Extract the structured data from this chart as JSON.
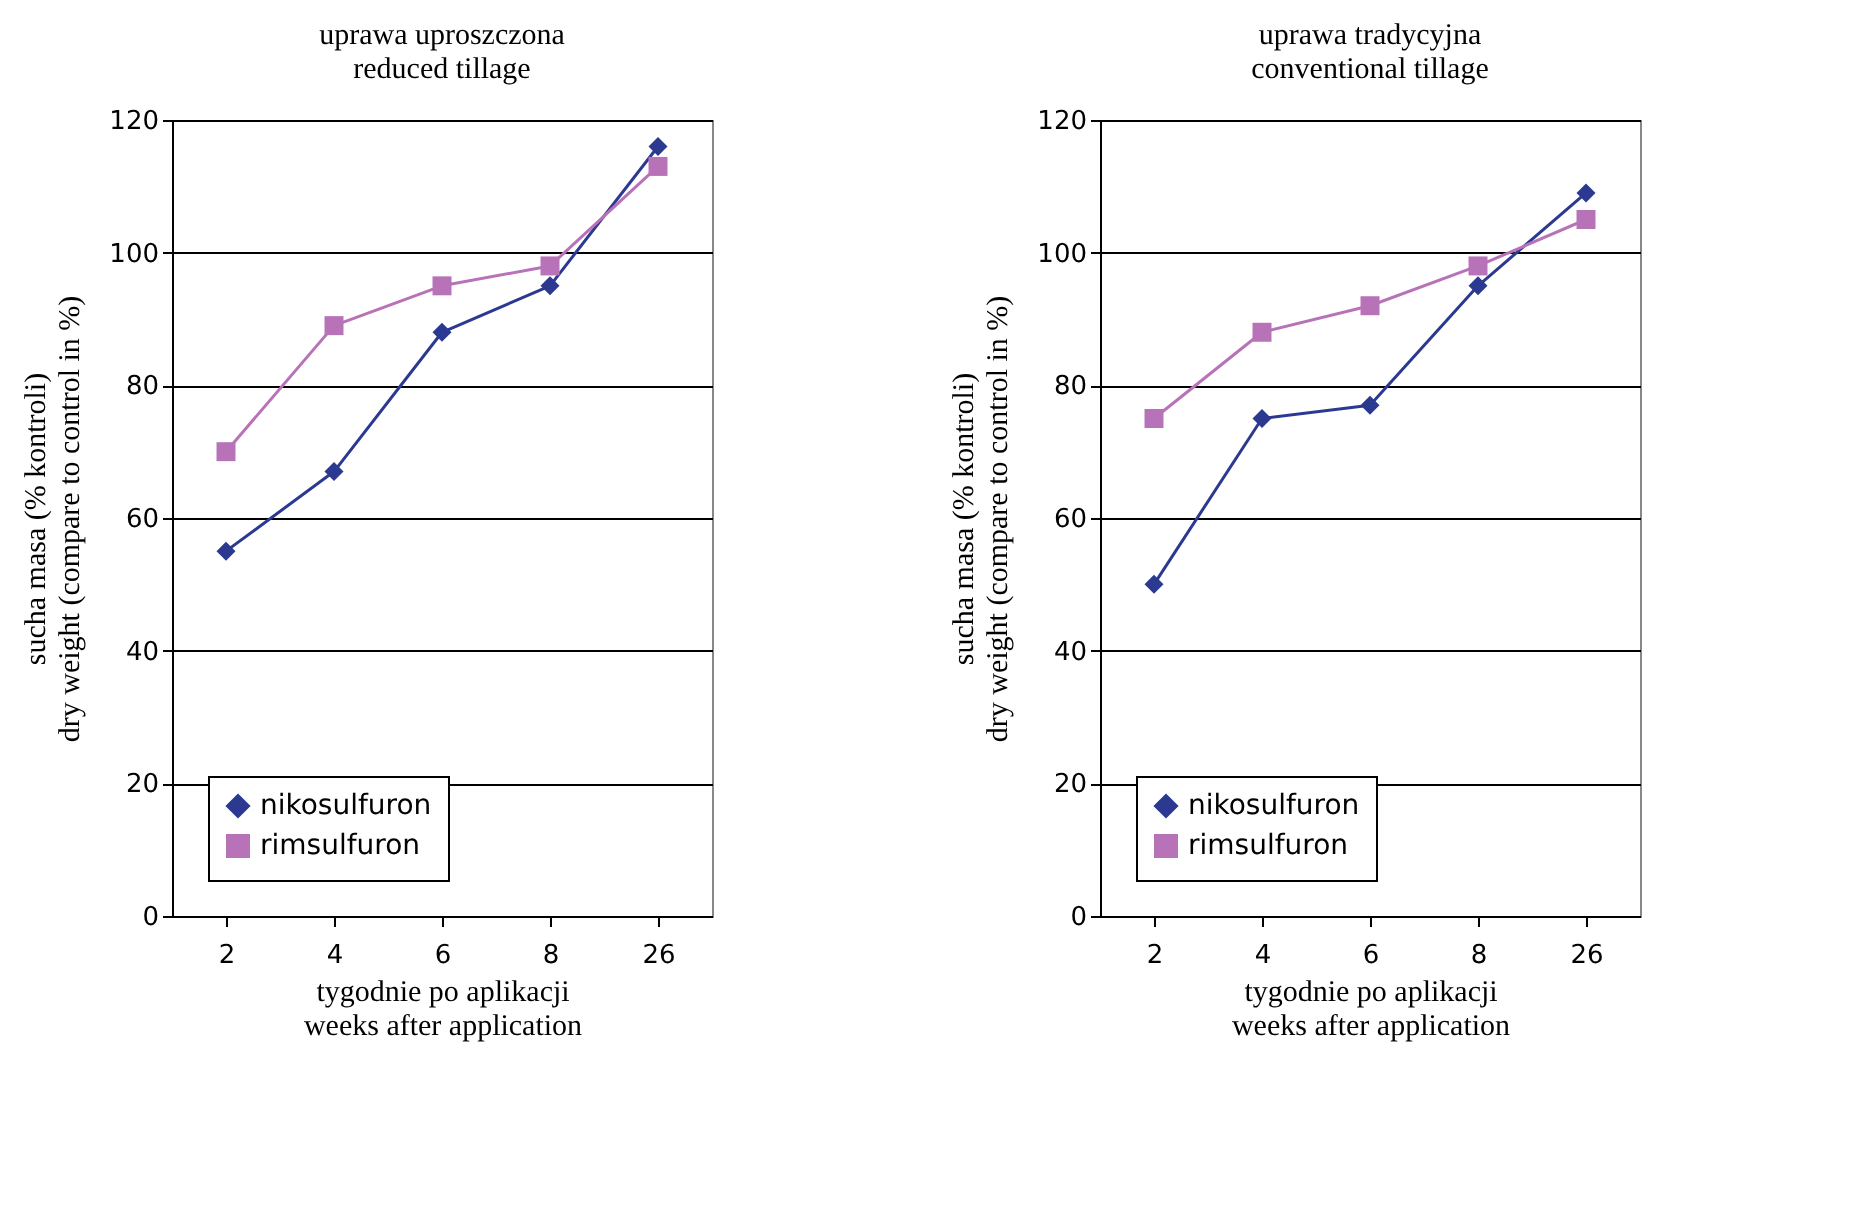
{
  "chart_data": [
    {
      "type": "line",
      "title": "uprawa uproszczona\nreduced tillage",
      "xlabel": "tygodnie po aplikacji\nweeks after application",
      "ylabel": "sucha masa (% kontroli)\ndry weight (compare to control in %)",
      "categories": [
        "2",
        "4",
        "6",
        "8",
        "26"
      ],
      "series": [
        {
          "name": "nikosulfuron",
          "color": "#2b3990",
          "marker": "diamond",
          "values": [
            55,
            67,
            88,
            95,
            116
          ]
        },
        {
          "name": "rimsulfuron",
          "color": "#b872b8",
          "marker": "square",
          "values": [
            70,
            89,
            95,
            98,
            113
          ]
        }
      ],
      "ylim": [
        0,
        120
      ],
      "yticks": [
        0,
        20,
        40,
        60,
        80,
        100,
        120
      ],
      "grid": "y",
      "legend": "bottom"
    },
    {
      "type": "line",
      "title": "uprawa tradycyjna\nconventional tillage",
      "xlabel": "tygodnie po aplikacji\nweeks after application",
      "ylabel": "sucha masa (% kontroli)\ndry weight (compare to control in %)",
      "categories": [
        "2",
        "4",
        "6",
        "8",
        "26"
      ],
      "series": [
        {
          "name": "nikosulfuron",
          "color": "#2b3990",
          "marker": "diamond",
          "values": [
            50,
            75,
            77,
            95,
            109
          ]
        },
        {
          "name": "rimsulfuron",
          "color": "#b872b8",
          "marker": "square",
          "values": [
            75,
            88,
            92,
            98,
            105
          ]
        }
      ],
      "ylim": [
        0,
        120
      ],
      "yticks": [
        0,
        20,
        40,
        60,
        80,
        100,
        120
      ],
      "grid": "y",
      "legend": "bottom"
    }
  ]
}
